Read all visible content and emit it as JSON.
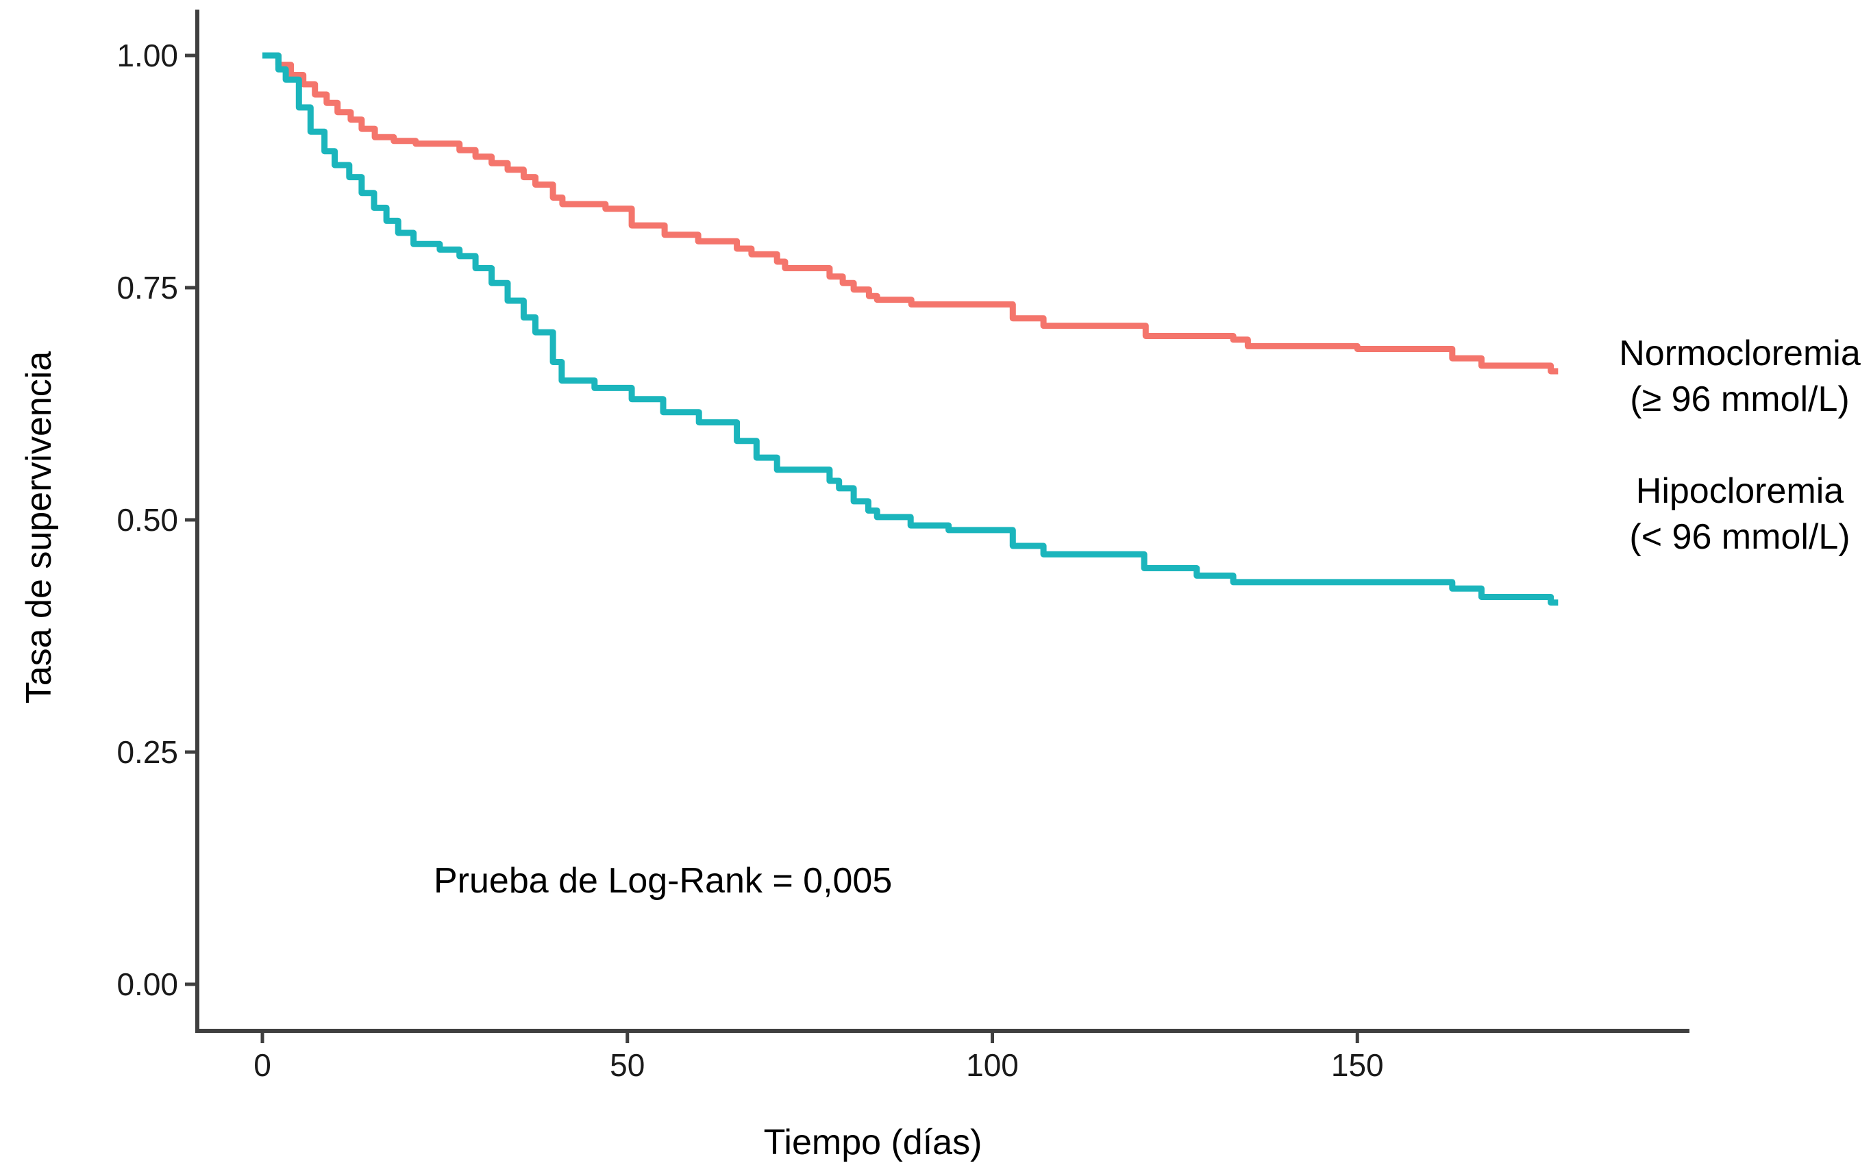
{
  "page": {
    "background": "#ffffff"
  },
  "chart_data": {
    "type": "line",
    "subtype": "kaplan-meier-step-curves",
    "title": "",
    "grid": false,
    "legend_position": "right-outside",
    "x_axis": {
      "label": "Tiempo (días)",
      "tick_labels": [
        "0",
        "50",
        "100",
        "150"
      ],
      "tick_values": [
        0,
        50,
        100,
        150
      ],
      "range": [
        0,
        195
      ]
    },
    "y_axis": {
      "label": "Tasa de supervivencia",
      "tick_labels": [
        "1.00",
        "0.75",
        "0.50",
        "0.25",
        "0.00"
      ],
      "tick_values": [
        1.0,
        0.75,
        0.5,
        0.25,
        0.0
      ],
      "range": [
        0,
        1
      ]
    },
    "annotation": {
      "text": "Prueba de Log-Rank = 0,005"
    },
    "series": [
      {
        "name": "Normocloremia",
        "label_line1": "Normocloremia",
        "label_line2": "(≥ 96 mmol/L)",
        "color": "#F4756C",
        "end_day": 177.5,
        "points": [
          [
            0,
            1.0
          ],
          [
            2.2,
            0.99
          ],
          [
            3.9,
            0.979
          ],
          [
            5.6,
            0.969
          ],
          [
            7.2,
            0.958
          ],
          [
            8.8,
            0.949
          ],
          [
            10.3,
            0.939
          ],
          [
            12.1,
            0.931
          ],
          [
            13.6,
            0.921
          ],
          [
            15.4,
            0.912
          ],
          [
            18.0,
            0.908
          ],
          [
            21.0,
            0.905
          ],
          [
            27.0,
            0.898
          ],
          [
            29.2,
            0.891
          ],
          [
            31.4,
            0.884
          ],
          [
            33.6,
            0.877
          ],
          [
            35.8,
            0.869
          ],
          [
            37.4,
            0.861
          ],
          [
            39.8,
            0.847
          ],
          [
            41.1,
            0.84
          ],
          [
            47.0,
            0.835
          ],
          [
            50.6,
            0.817
          ],
          [
            55.1,
            0.807
          ],
          [
            59.7,
            0.8
          ],
          [
            65.0,
            0.792
          ],
          [
            67.0,
            0.786
          ],
          [
            70.5,
            0.778
          ],
          [
            71.6,
            0.771
          ],
          [
            77.7,
            0.762
          ],
          [
            79.5,
            0.755
          ],
          [
            81.0,
            0.748
          ],
          [
            83.1,
            0.741
          ],
          [
            84.2,
            0.737
          ],
          [
            88.9,
            0.732
          ],
          [
            102.8,
            0.717
          ],
          [
            107.0,
            0.709
          ],
          [
            121.0,
            0.698
          ],
          [
            133.0,
            0.694
          ],
          [
            135.0,
            0.687
          ],
          [
            150.0,
            0.684
          ],
          [
            163.0,
            0.674
          ],
          [
            167.0,
            0.666
          ],
          [
            176.5,
            0.66
          ]
        ]
      },
      {
        "name": "Hipocloremia",
        "label_line1": "Hipocloremia",
        "label_line2": "(< 96 mmol/L)",
        "color": "#1BB5BC",
        "end_day": 177.5,
        "points": [
          [
            0,
            1.0
          ],
          [
            2.2,
            0.985
          ],
          [
            3.2,
            0.974
          ],
          [
            5.0,
            0.944
          ],
          [
            6.6,
            0.918
          ],
          [
            8.5,
            0.897
          ],
          [
            9.9,
            0.882
          ],
          [
            11.9,
            0.869
          ],
          [
            13.6,
            0.852
          ],
          [
            15.3,
            0.836
          ],
          [
            17.0,
            0.822
          ],
          [
            18.6,
            0.809
          ],
          [
            20.7,
            0.797
          ],
          [
            24.3,
            0.791
          ],
          [
            27.0,
            0.784
          ],
          [
            29.2,
            0.771
          ],
          [
            31.4,
            0.755
          ],
          [
            33.6,
            0.736
          ],
          [
            35.8,
            0.718
          ],
          [
            37.4,
            0.702
          ],
          [
            39.8,
            0.67
          ],
          [
            41.0,
            0.65
          ],
          [
            45.5,
            0.642
          ],
          [
            50.6,
            0.63
          ],
          [
            54.9,
            0.616
          ],
          [
            59.8,
            0.605
          ],
          [
            65.0,
            0.585
          ],
          [
            67.7,
            0.567
          ],
          [
            70.5,
            0.554
          ],
          [
            77.7,
            0.542
          ],
          [
            79.0,
            0.534
          ],
          [
            81.0,
            0.52
          ],
          [
            83.0,
            0.51
          ],
          [
            84.2,
            0.503
          ],
          [
            88.8,
            0.494
          ],
          [
            94.0,
            0.489
          ],
          [
            102.8,
            0.472
          ],
          [
            107.0,
            0.463
          ],
          [
            120.8,
            0.448
          ],
          [
            128.0,
            0.44
          ],
          [
            133.0,
            0.433
          ],
          [
            163.0,
            0.426
          ],
          [
            167.0,
            0.417
          ],
          [
            176.5,
            0.411
          ]
        ]
      }
    ],
    "style": {
      "axis_color": "#3f3f3f",
      "tick_label_color": "#1a1a1a",
      "curve_stroke_width": 9,
      "background": "#ffffff"
    }
  }
}
